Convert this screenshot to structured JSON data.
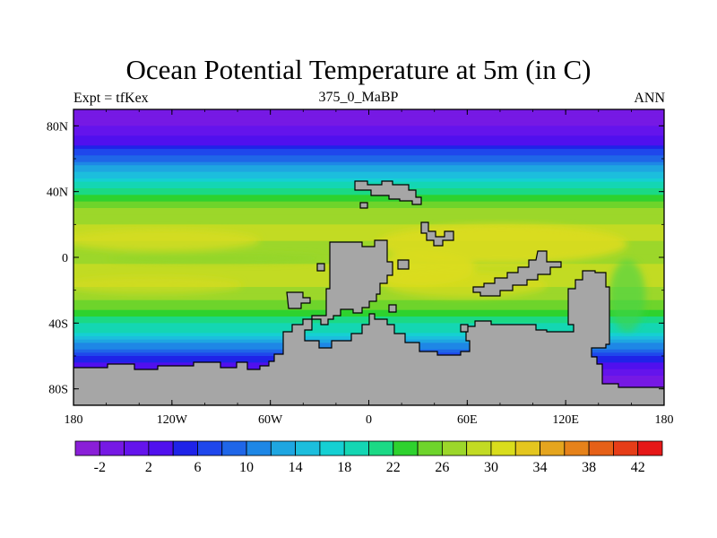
{
  "title": "Ocean Potential Temperature at 5m (in C)",
  "subtitle_left": "Expt = tfKex",
  "subtitle_center": "375_0_MaBP",
  "subtitle_right": "ANN",
  "chart_data": {
    "type": "heatmap",
    "title": "Ocean Potential Temperature at 5m (in C)",
    "projection": "cylindrical equidistant",
    "xlim": [
      -180,
      180
    ],
    "ylim": [
      -90,
      90
    ],
    "x_ticks": [
      {
        "value": -180,
        "label": "180"
      },
      {
        "value": -120,
        "label": "120W"
      },
      {
        "value": -60,
        "label": "60W"
      },
      {
        "value": 0,
        "label": "0"
      },
      {
        "value": 60,
        "label": "60E"
      },
      {
        "value": 120,
        "label": "120E"
      },
      {
        "value": 180,
        "label": "180"
      }
    ],
    "y_ticks": [
      {
        "value": 80,
        "label": "80N"
      },
      {
        "value": 40,
        "label": "40N"
      },
      {
        "value": 0,
        "label": "0"
      },
      {
        "value": -40,
        "label": "40S"
      },
      {
        "value": -80,
        "label": "80S"
      }
    ],
    "land_color": "#a6a6a6",
    "colorbar": {
      "levels": [
        -4,
        -2,
        0,
        2,
        4,
        6,
        8,
        10,
        12,
        14,
        16,
        18,
        20,
        22,
        24,
        26,
        28,
        30,
        32,
        34,
        36,
        38,
        40,
        42,
        44
      ],
      "tick_labels": [
        {
          "value": -2,
          "label": "-2"
        },
        {
          "value": 2,
          "label": "2"
        },
        {
          "value": 6,
          "label": "6"
        },
        {
          "value": 10,
          "label": "10"
        },
        {
          "value": 14,
          "label": "14"
        },
        {
          "value": 18,
          "label": "18"
        },
        {
          "value": 22,
          "label": "22"
        },
        {
          "value": 26,
          "label": "26"
        },
        {
          "value": 30,
          "label": "30"
        },
        {
          "value": 34,
          "label": "34"
        },
        {
          "value": 38,
          "label": "38"
        },
        {
          "value": 42,
          "label": "42"
        }
      ],
      "colors": [
        "#8a1fd8",
        "#7619e4",
        "#6414ec",
        "#5010ee",
        "#1f23e8",
        "#1f47ec",
        "#1f66e8",
        "#1e87e6",
        "#1ea6e1",
        "#1cbedd",
        "#15d0d3",
        "#14d6b3",
        "#1bd985",
        "#2ed22e",
        "#6ed42b",
        "#9cd72a",
        "#c2db23",
        "#d9dd1c",
        "#e4c61e",
        "#e5a51e",
        "#e6821a",
        "#e66018",
        "#e63d18",
        "#e61818"
      ]
    },
    "zonal_mean_sst": [
      {
        "lat": 85,
        "value": -2
      },
      {
        "lat": 70,
        "value": 3
      },
      {
        "lat": 55,
        "value": 12
      },
      {
        "lat": 45,
        "value": 18
      },
      {
        "lat": 30,
        "value": 26
      },
      {
        "lat": 15,
        "value": 29
      },
      {
        "lat": 5,
        "value": 27
      },
      {
        "lat": -5,
        "value": 28
      },
      {
        "lat": -15,
        "value": 29
      },
      {
        "lat": -30,
        "value": 25
      },
      {
        "lat": -45,
        "value": 18
      },
      {
        "lat": -55,
        "value": 10
      },
      {
        "lat": -65,
        "value": 3
      },
      {
        "lat": -75,
        "value": -2
      }
    ]
  }
}
